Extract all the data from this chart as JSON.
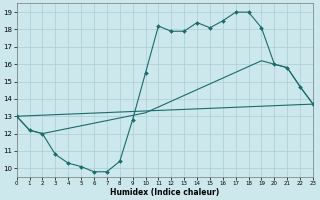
{
  "xlabel": "Humidex (Indice chaleur)",
  "bg_color": "#cce8ec",
  "grid_color": "#aacdd4",
  "line_color": "#1a6b6b",
  "line1_x": [
    0,
    1,
    2,
    3,
    4,
    5,
    6,
    7,
    8,
    9,
    10,
    11,
    12,
    13,
    14,
    15,
    16,
    17,
    18,
    19,
    20,
    21,
    22,
    23
  ],
  "line1_y": [
    13.0,
    12.2,
    12.0,
    10.8,
    10.3,
    10.1,
    9.8,
    9.8,
    10.4,
    12.8,
    15.5,
    18.2,
    17.9,
    17.9,
    18.4,
    18.1,
    18.5,
    19.0,
    19.0,
    18.1,
    16.0,
    15.8,
    14.7,
    13.7
  ],
  "line2_x": [
    0,
    23
  ],
  "line2_y": [
    13.0,
    13.7
  ],
  "line3_x": [
    0,
    1,
    2,
    10,
    19,
    20,
    21,
    22,
    23
  ],
  "line3_y": [
    13.0,
    12.2,
    12.0,
    13.2,
    16.2,
    16.0,
    15.8,
    14.7,
    13.7
  ],
  "xlim": [
    0,
    23
  ],
  "ylim": [
    9.5,
    19.5
  ],
  "yticks": [
    10,
    11,
    12,
    13,
    14,
    15,
    16,
    17,
    18,
    19
  ],
  "xticks": [
    0,
    1,
    2,
    3,
    4,
    5,
    6,
    7,
    8,
    9,
    10,
    11,
    12,
    13,
    14,
    15,
    16,
    17,
    18,
    19,
    20,
    21,
    22,
    23
  ],
  "figwidth": 3.2,
  "figheight": 2.0,
  "dpi": 100
}
